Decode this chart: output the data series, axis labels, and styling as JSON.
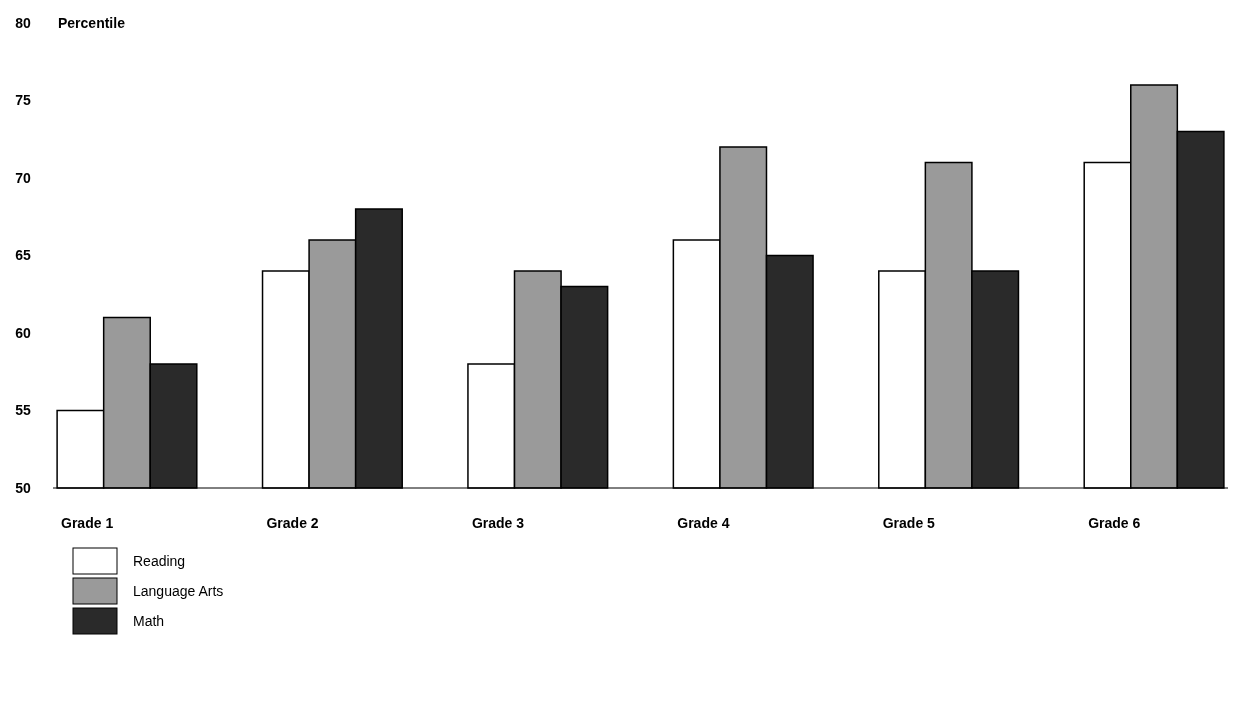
{
  "chart_data": {
    "type": "bar",
    "ylabel": "Percentile",
    "categories": [
      "Grade 1",
      "Grade 2",
      "Grade 3",
      "Grade 4",
      "Grade 5",
      "Grade 6"
    ],
    "series": [
      {
        "name": "Reading",
        "color": "#ffffff",
        "values": [
          55,
          64,
          58,
          66,
          64,
          71
        ]
      },
      {
        "name": "Language Arts",
        "color": "#9a9a9a",
        "values": [
          61,
          66,
          64,
          72,
          71,
          76
        ]
      },
      {
        "name": "Math",
        "color": "#2a2a2a",
        "values": [
          58,
          68,
          63,
          65,
          64,
          73
        ]
      }
    ],
    "ylim": [
      50,
      80
    ],
    "yticks": [
      50,
      55,
      60,
      65,
      70,
      75,
      80
    ],
    "grid": false,
    "legend": "bottom left"
  }
}
